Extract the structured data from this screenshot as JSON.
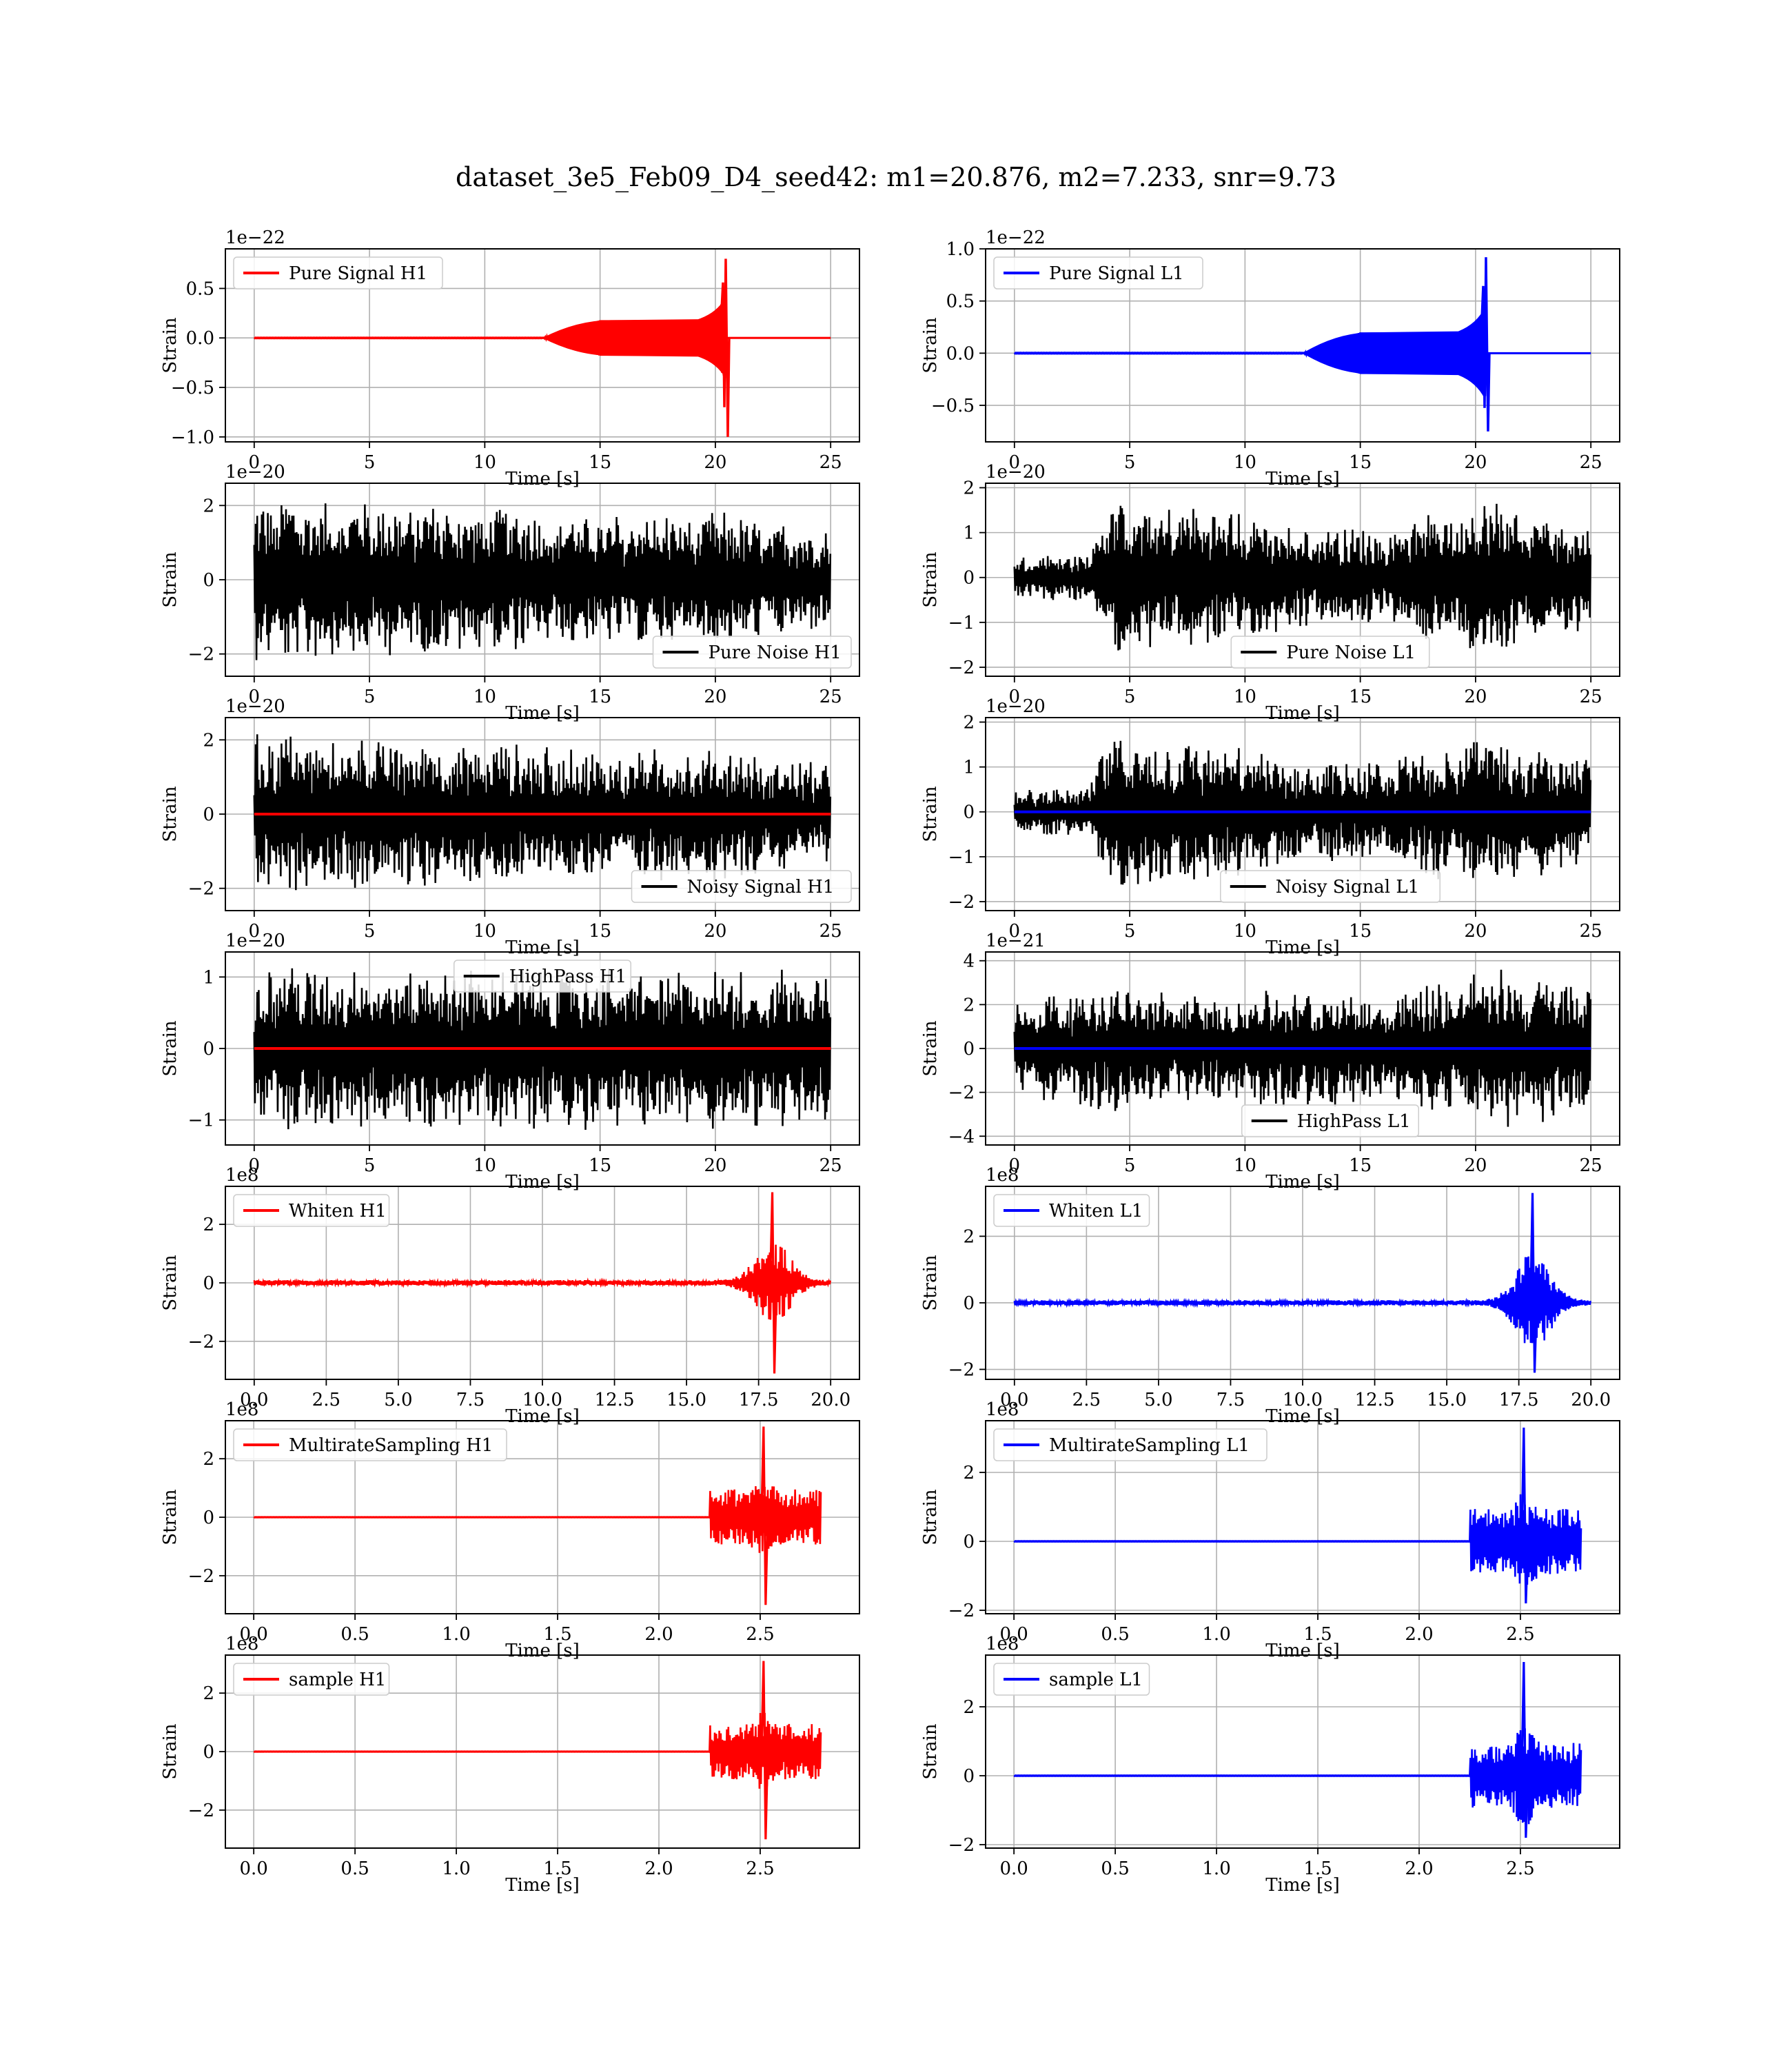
{
  "figure": {
    "title": "dataset_3e5_Feb09_D4_seed42: m1=20.876, m2=7.233, snr=9.73"
  },
  "colors": {
    "h1_signal": "#ff0000",
    "l1_signal": "#0000ff",
    "noise": "#000000",
    "grid": "#b0b0b0"
  },
  "chart_data": [
    {
      "id": "pure-signal-h1",
      "type": "line",
      "col": 0,
      "row": 0,
      "xlabel": "Time [s]",
      "ylabel": "Strain",
      "offset": "1e−22",
      "xlim": [
        -1.25,
        26.25
      ],
      "ylim": [
        -1.05,
        0.9
      ],
      "xticks": [
        0,
        5,
        10,
        15,
        20,
        25
      ],
      "yticks": [
        -1.0,
        -0.5,
        0.0,
        0.5
      ],
      "yticklabels": [
        "−1.0",
        "−0.5",
        "0.0",
        "0.5"
      ],
      "grid": true,
      "legend": "top-left",
      "series": [
        {
          "name": "Pure Signal H1",
          "color": "#ff0000",
          "kind": "chirp",
          "start": 0,
          "end": 25,
          "onset": 12.5,
          "merger": 20.45,
          "plateau": 0.18,
          "peak": 0.8,
          "trough": -1.0
        }
      ]
    },
    {
      "id": "pure-signal-l1",
      "type": "line",
      "col": 1,
      "row": 0,
      "xlabel": "Time [s]",
      "ylabel": "Strain",
      "offset": "1e−22",
      "xlim": [
        -1.25,
        26.25
      ],
      "ylim": [
        -0.85,
        1.0
      ],
      "xticks": [
        0,
        5,
        10,
        15,
        20,
        25
      ],
      "yticks": [
        -0.5,
        0.0,
        0.5,
        1.0
      ],
      "yticklabels": [
        "−0.5",
        "0.0",
        "0.5",
        "1.0"
      ],
      "grid": true,
      "legend": "top-left",
      "series": [
        {
          "name": "Pure Signal L1",
          "color": "#0000ff",
          "kind": "chirp",
          "start": 0,
          "end": 25,
          "onset": 12.5,
          "merger": 20.45,
          "plateau": 0.2,
          "peak": 0.92,
          "trough": -0.75
        }
      ]
    },
    {
      "id": "pure-noise-h1",
      "type": "line",
      "col": 0,
      "row": 1,
      "xlabel": "Time [s]",
      "ylabel": "Strain",
      "offset": "1e−20",
      "xlim": [
        -1.25,
        26.25
      ],
      "ylim": [
        -2.6,
        2.6
      ],
      "xticks": [
        0,
        5,
        10,
        15,
        20,
        25
      ],
      "yticks": [
        -2,
        0,
        2
      ],
      "yticklabels": [
        "−2",
        "0",
        "2"
      ],
      "grid": true,
      "legend": "bottom-right",
      "series": [
        {
          "name": "Pure Noise H1",
          "color": "#000000",
          "kind": "noise",
          "start": 0,
          "end": 25,
          "amp": 2.2,
          "env": [
            [
              0,
              1.0
            ],
            [
              5,
              0.95
            ],
            [
              10,
              0.9
            ],
            [
              15,
              0.78
            ],
            [
              20,
              0.85
            ],
            [
              25,
              0.6
            ]
          ]
        }
      ]
    },
    {
      "id": "pure-noise-l1",
      "type": "line",
      "col": 1,
      "row": 1,
      "xlabel": "Time [s]",
      "ylabel": "Strain",
      "offset": "1e−20",
      "xlim": [
        -1.25,
        26.25
      ],
      "ylim": [
        -2.2,
        2.1
      ],
      "xticks": [
        0,
        5,
        10,
        15,
        20,
        25
      ],
      "yticks": [
        -2,
        -1,
        0,
        1,
        2
      ],
      "yticklabels": [
        "−2",
        "−1",
        "0",
        "1",
        "2"
      ],
      "grid": true,
      "legend": "bottom-center",
      "series": [
        {
          "name": "Pure Noise L1",
          "color": "#000000",
          "kind": "noise",
          "start": 0,
          "end": 25,
          "amp": 1.95,
          "env": [
            [
              0,
              0.25
            ],
            [
              3.3,
              0.28
            ],
            [
              3.8,
              0.85
            ],
            [
              9,
              0.8
            ],
            [
              12,
              0.6
            ],
            [
              16,
              0.55
            ],
            [
              18,
              0.8
            ],
            [
              21,
              0.9
            ],
            [
              25,
              0.6
            ]
          ]
        }
      ]
    },
    {
      "id": "noisy-signal-h1",
      "type": "line",
      "col": 0,
      "row": 2,
      "xlabel": "Time [s]",
      "ylabel": "Strain",
      "offset": "1e−20",
      "xlim": [
        -1.25,
        26.25
      ],
      "ylim": [
        -2.6,
        2.6
      ],
      "xticks": [
        0,
        5,
        10,
        15,
        20,
        25
      ],
      "yticks": [
        -2,
        0,
        2
      ],
      "yticklabels": [
        "−2",
        "0",
        "2"
      ],
      "grid": true,
      "legend": "bottom-right",
      "series": [
        {
          "name": "Noisy Signal H1",
          "color": "#000000",
          "kind": "noise",
          "start": 0,
          "end": 25,
          "amp": 2.2,
          "env": [
            [
              0,
              1.0
            ],
            [
              5,
              0.95
            ],
            [
              10,
              0.9
            ],
            [
              15,
              0.78
            ],
            [
              20,
              0.85
            ],
            [
              25,
              0.6
            ]
          ]
        },
        {
          "name": "",
          "color": "#ff0000",
          "kind": "flat",
          "start": 0,
          "end": 25,
          "value": 0
        }
      ]
    },
    {
      "id": "noisy-signal-l1",
      "type": "line",
      "col": 1,
      "row": 2,
      "xlabel": "Time [s]",
      "ylabel": "Strain",
      "offset": "1e−20",
      "xlim": [
        -1.25,
        26.25
      ],
      "ylim": [
        -2.2,
        2.1
      ],
      "xticks": [
        0,
        5,
        10,
        15,
        20,
        25
      ],
      "yticks": [
        -2,
        -1,
        0,
        1,
        2
      ],
      "yticklabels": [
        "−2",
        "−1",
        "0",
        "1",
        "2"
      ],
      "grid": true,
      "legend": "bottom-center",
      "series": [
        {
          "name": "Noisy Signal L1",
          "color": "#000000",
          "kind": "noise",
          "start": 0,
          "end": 25,
          "amp": 1.95,
          "env": [
            [
              0,
              0.25
            ],
            [
              3.3,
              0.28
            ],
            [
              3.8,
              0.85
            ],
            [
              9,
              0.8
            ],
            [
              12,
              0.6
            ],
            [
              16,
              0.55
            ],
            [
              18,
              0.8
            ],
            [
              21,
              0.9
            ],
            [
              25,
              0.6
            ]
          ]
        },
        {
          "name": "",
          "color": "#0000ff",
          "kind": "flat",
          "start": 0,
          "end": 25,
          "value": 0
        }
      ]
    },
    {
      "id": "highpass-h1",
      "type": "line",
      "col": 0,
      "row": 3,
      "xlabel": "Time [s]",
      "ylabel": "Strain",
      "offset": "1e−20",
      "xlim": [
        -1.25,
        26.25
      ],
      "ylim": [
        -1.35,
        1.35
      ],
      "xticks": [
        0,
        5,
        10,
        15,
        20,
        25
      ],
      "yticks": [
        -1,
        0,
        1
      ],
      "yticklabels": [
        "−1",
        "0",
        "1"
      ],
      "grid": true,
      "legend": "top-center",
      "series": [
        {
          "name": "HighPass H1",
          "color": "#000000",
          "kind": "noise",
          "start": 0,
          "end": 25,
          "amp": 1.2,
          "env": [
            [
              0,
              0.95
            ],
            [
              25,
              0.95
            ]
          ]
        },
        {
          "name": "",
          "color": "#ff0000",
          "kind": "flat",
          "start": 0,
          "end": 25,
          "value": 0
        }
      ]
    },
    {
      "id": "highpass-l1",
      "type": "line",
      "col": 1,
      "row": 3,
      "xlabel": "Time [s]",
      "ylabel": "Strain",
      "offset": "1e−21",
      "xlim": [
        -1.25,
        26.25
      ],
      "ylim": [
        -4.4,
        4.4
      ],
      "xticks": [
        0,
        5,
        10,
        15,
        20,
        25
      ],
      "yticks": [
        -4,
        -2,
        0,
        2,
        4
      ],
      "yticklabels": [
        "−4",
        "−2",
        "0",
        "2",
        "4"
      ],
      "grid": true,
      "legend": "bottom-center",
      "series": [
        {
          "name": "HighPass L1",
          "color": "#000000",
          "kind": "noise",
          "start": 0,
          "end": 25,
          "amp": 4.0,
          "env": [
            [
              0,
              0.55
            ],
            [
              4,
              0.75
            ],
            [
              8,
              0.6
            ],
            [
              12,
              0.7
            ],
            [
              16,
              0.65
            ],
            [
              21,
              0.95
            ],
            [
              25,
              0.75
            ]
          ]
        },
        {
          "name": "",
          "color": "#0000ff",
          "kind": "flat",
          "start": 0,
          "end": 25,
          "value": 0
        }
      ]
    },
    {
      "id": "whiten-h1",
      "type": "line",
      "col": 0,
      "row": 4,
      "xlabel": "Time [s]",
      "ylabel": "Strain",
      "offset": "1e8",
      "xlim": [
        -1.0,
        21.0
      ],
      "ylim": [
        -3.3,
        3.3
      ],
      "xticks": [
        0,
        2.5,
        5,
        7.5,
        10,
        12.5,
        15,
        17.5,
        20
      ],
      "yticks": [
        -2,
        0,
        2
      ],
      "yticklabels": [
        "−2",
        "0",
        "2"
      ],
      "xticklabels": [
        "0.0",
        "2.5",
        "5.0",
        "7.5",
        "10.0",
        "12.5",
        "15.0",
        "17.5",
        "20.0"
      ],
      "grid": true,
      "legend": "top-left",
      "series": [
        {
          "name": "Whiten H1",
          "color": "#ff0000",
          "kind": "burst",
          "start": 0,
          "end": 20,
          "base": 0.06,
          "center": 18.0,
          "width": 1.0,
          "amp": 3.1,
          "low": -3.1
        }
      ]
    },
    {
      "id": "whiten-l1",
      "type": "line",
      "col": 1,
      "row": 4,
      "xlabel": "Time [s]",
      "ylabel": "Strain",
      "offset": "1e8",
      "xlim": [
        -1.0,
        21.0
      ],
      "ylim": [
        -2.3,
        3.5
      ],
      "xticks": [
        0,
        2.5,
        5,
        7.5,
        10,
        12.5,
        15,
        17.5,
        20
      ],
      "yticks": [
        -2,
        0,
        2
      ],
      "yticklabels": [
        "−2",
        "0",
        "2"
      ],
      "xticklabels": [
        "0.0",
        "2.5",
        "5.0",
        "7.5",
        "10.0",
        "12.5",
        "15.0",
        "17.5",
        "20.0"
      ],
      "grid": true,
      "legend": "top-left",
      "series": [
        {
          "name": "Whiten L1",
          "color": "#0000ff",
          "kind": "burst",
          "start": 0,
          "end": 20,
          "base": 0.05,
          "center": 18.0,
          "width": 1.0,
          "amp": 3.3,
          "low": -2.1
        }
      ]
    },
    {
      "id": "multirate-h1",
      "type": "line",
      "col": 0,
      "row": 5,
      "xlabel": "Time [s]",
      "ylabel": "Strain",
      "offset": "1e8",
      "xlim": [
        -0.14,
        2.99
      ],
      "ylim": [
        -3.3,
        3.3
      ],
      "xticks": [
        0,
        0.5,
        1.0,
        1.5,
        2.0,
        2.5
      ],
      "yticks": [
        -2,
        0,
        2
      ],
      "yticklabels": [
        "−2",
        "0",
        "2"
      ],
      "xticklabels": [
        "0.0",
        "0.5",
        "1.0",
        "1.5",
        "2.0",
        "2.5"
      ],
      "grid": true,
      "legend": "top-left",
      "series": [
        {
          "name": "MultirateSampling H1",
          "color": "#ff0000",
          "kind": "burst",
          "start": 0,
          "end": 2.8,
          "base": 0.0,
          "center": 2.52,
          "width": 0.14,
          "amp": 3.1,
          "low": -3.0,
          "band": [
            2.25,
            2.8
          ]
        }
      ]
    },
    {
      "id": "multirate-l1",
      "type": "line",
      "col": 1,
      "row": 5,
      "xlabel": "Time [s]",
      "ylabel": "Strain",
      "offset": "1e8",
      "xlim": [
        -0.14,
        2.99
      ],
      "ylim": [
        -2.1,
        3.5
      ],
      "xticks": [
        0,
        0.5,
        1.0,
        1.5,
        2.0,
        2.5
      ],
      "yticks": [
        -2,
        0,
        2
      ],
      "yticklabels": [
        "−2",
        "0",
        "2"
      ],
      "xticklabels": [
        "0.0",
        "0.5",
        "1.0",
        "1.5",
        "2.0",
        "2.5"
      ],
      "grid": true,
      "legend": "top-left",
      "series": [
        {
          "name": "MultirateSampling L1",
          "color": "#0000ff",
          "kind": "burst",
          "start": 0,
          "end": 2.8,
          "base": 0.0,
          "center": 2.52,
          "width": 0.14,
          "amp": 3.3,
          "low": -1.8,
          "band": [
            2.25,
            2.8
          ]
        }
      ]
    },
    {
      "id": "sample-h1",
      "type": "line",
      "col": 0,
      "row": 6,
      "xlabel": "Time [s]",
      "ylabel": "Strain",
      "offset": "1e8",
      "xlim": [
        -0.14,
        2.99
      ],
      "ylim": [
        -3.3,
        3.3
      ],
      "xticks": [
        0,
        0.5,
        1.0,
        1.5,
        2.0,
        2.5
      ],
      "yticks": [
        -2,
        0,
        2
      ],
      "yticklabels": [
        "−2",
        "0",
        "2"
      ],
      "xticklabels": [
        "0.0",
        "0.5",
        "1.0",
        "1.5",
        "2.0",
        "2.5"
      ],
      "grid": true,
      "legend": "top-left",
      "series": [
        {
          "name": "sample H1",
          "color": "#ff0000",
          "kind": "burst",
          "start": 0,
          "end": 2.8,
          "base": 0.0,
          "center": 2.52,
          "width": 0.14,
          "amp": 3.1,
          "low": -3.0,
          "band": [
            2.25,
            2.8
          ]
        }
      ]
    },
    {
      "id": "sample-l1",
      "type": "line",
      "col": 1,
      "row": 6,
      "xlabel": "Time [s]",
      "ylabel": "Strain",
      "offset": "1e8",
      "xlim": [
        -0.14,
        2.99
      ],
      "ylim": [
        -2.1,
        3.5
      ],
      "xticks": [
        0,
        0.5,
        1.0,
        1.5,
        2.0,
        2.5
      ],
      "yticks": [
        -2,
        0,
        2
      ],
      "yticklabels": [
        "−2",
        "0",
        "2"
      ],
      "xticklabels": [
        "0.0",
        "0.5",
        "1.0",
        "1.5",
        "2.0",
        "2.5"
      ],
      "grid": true,
      "legend": "top-left",
      "series": [
        {
          "name": "sample L1",
          "color": "#0000ff",
          "kind": "burst",
          "start": 0,
          "end": 2.8,
          "base": 0.0,
          "center": 2.52,
          "width": 0.14,
          "amp": 3.3,
          "low": -1.8,
          "band": [
            2.25,
            2.8
          ]
        }
      ]
    }
  ]
}
